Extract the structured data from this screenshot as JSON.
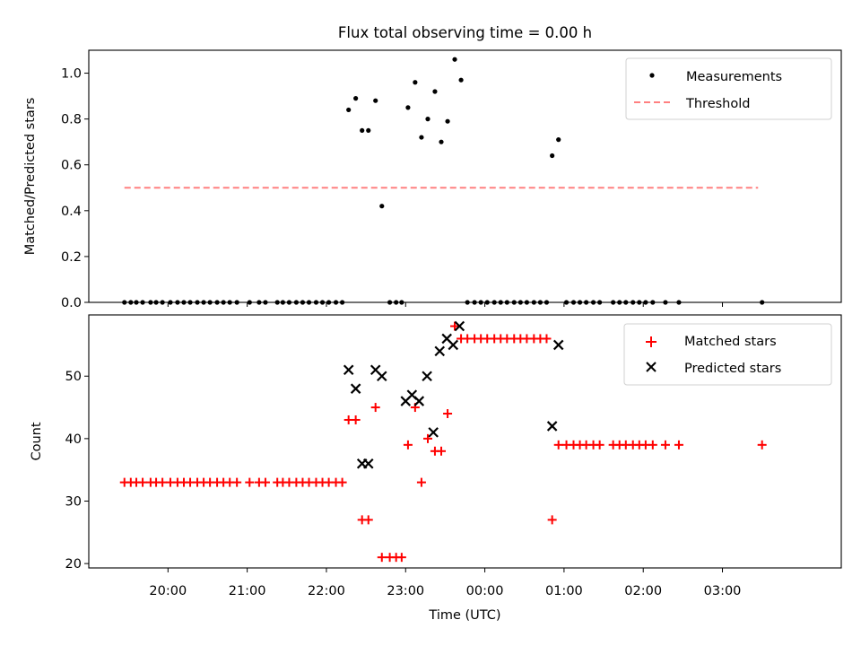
{
  "figure_title": "Flux total observing time = 0.00 h",
  "chart_data": [
    {
      "type": "scatter",
      "ylabel": "Matched/Predicted stars",
      "xlim_hours": [
        19.0,
        28.5
      ],
      "ylim": [
        0,
        1.1
      ],
      "yticks": [
        0.0,
        0.2,
        0.4,
        0.6,
        0.8,
        1.0
      ],
      "ytick_labels": [
        "0.0",
        "0.2",
        "0.4",
        "0.6",
        "0.8",
        "1.0"
      ],
      "legend": {
        "position": "upper right",
        "entries": [
          "Measurements",
          "Threshold"
        ]
      },
      "series": [
        {
          "name": "Measurements",
          "marker": "dot",
          "color": "#000000",
          "points": [
            [
              19.45,
              0
            ],
            [
              19.53,
              0
            ],
            [
              19.6,
              0
            ],
            [
              19.68,
              0
            ],
            [
              19.78,
              0
            ],
            [
              19.85,
              0
            ],
            [
              19.93,
              0
            ],
            [
              20.03,
              0
            ],
            [
              20.12,
              0
            ],
            [
              20.2,
              0
            ],
            [
              20.28,
              0
            ],
            [
              20.37,
              0
            ],
            [
              20.45,
              0
            ],
            [
              20.53,
              0
            ],
            [
              20.62,
              0
            ],
            [
              20.7,
              0
            ],
            [
              20.78,
              0
            ],
            [
              20.87,
              0
            ],
            [
              21.03,
              0
            ],
            [
              21.15,
              0
            ],
            [
              21.23,
              0
            ],
            [
              21.38,
              0
            ],
            [
              21.45,
              0
            ],
            [
              21.53,
              0
            ],
            [
              21.62,
              0
            ],
            [
              21.7,
              0
            ],
            [
              21.78,
              0
            ],
            [
              21.87,
              0
            ],
            [
              21.95,
              0
            ],
            [
              22.03,
              0
            ],
            [
              22.12,
              0
            ],
            [
              22.2,
              0
            ],
            [
              22.28,
              0.84
            ],
            [
              22.37,
              0.89
            ],
            [
              22.45,
              0.75
            ],
            [
              22.53,
              0.75
            ],
            [
              22.62,
              0.88
            ],
            [
              22.7,
              0.42
            ],
            [
              22.8,
              0
            ],
            [
              22.88,
              0
            ],
            [
              22.95,
              0
            ],
            [
              23.03,
              0.85
            ],
            [
              23.12,
              0.96
            ],
            [
              23.2,
              0.72
            ],
            [
              23.28,
              0.8
            ],
            [
              23.37,
              0.92
            ],
            [
              23.45,
              0.7
            ],
            [
              23.53,
              0.79
            ],
            [
              23.62,
              1.06
            ],
            [
              23.7,
              0.97
            ],
            [
              23.78,
              0
            ],
            [
              23.87,
              0
            ],
            [
              23.95,
              0
            ],
            [
              24.03,
              0
            ],
            [
              24.12,
              0
            ],
            [
              24.2,
              0
            ],
            [
              24.28,
              0
            ],
            [
              24.37,
              0
            ],
            [
              24.45,
              0
            ],
            [
              24.53,
              0
            ],
            [
              24.62,
              0
            ],
            [
              24.7,
              0
            ],
            [
              24.78,
              0
            ],
            [
              24.85,
              0.64
            ],
            [
              24.93,
              0.71
            ],
            [
              25.03,
              0
            ],
            [
              25.12,
              0
            ],
            [
              25.2,
              0
            ],
            [
              25.28,
              0
            ],
            [
              25.37,
              0
            ],
            [
              25.45,
              0
            ],
            [
              25.62,
              0
            ],
            [
              25.7,
              0
            ],
            [
              25.78,
              0
            ],
            [
              25.87,
              0
            ],
            [
              25.95,
              0
            ],
            [
              26.03,
              0
            ],
            [
              26.12,
              0
            ],
            [
              26.28,
              0
            ],
            [
              26.45,
              0
            ],
            [
              27.5,
              0
            ]
          ]
        },
        {
          "name": "Threshold",
          "style": "dashed",
          "color": "#ff8080",
          "points": [
            [
              19.45,
              0.5
            ],
            [
              27.45,
              0.5
            ]
          ]
        }
      ]
    },
    {
      "type": "scatter",
      "xlabel": "Time (UTC)",
      "ylabel": "Count",
      "xlim_hours": [
        19.0,
        28.5
      ],
      "ylim": [
        19.3,
        59.8
      ],
      "yticks": [
        20,
        30,
        40,
        50
      ],
      "ytick_labels": [
        "20",
        "30",
        "40",
        "50"
      ],
      "xticks_hours": [
        20,
        21,
        22,
        23,
        24,
        25,
        26,
        27
      ],
      "xtick_labels": [
        "20:00",
        "21:00",
        "22:00",
        "23:00",
        "00:00",
        "01:00",
        "02:00",
        "03:00"
      ],
      "legend": {
        "position": "upper right",
        "entries": [
          "Matched stars",
          "Predicted stars"
        ]
      },
      "series": [
        {
          "name": "Matched stars",
          "marker": "plus",
          "color": "#ff0000",
          "points": [
            [
              19.45,
              33
            ],
            [
              19.53,
              33
            ],
            [
              19.6,
              33
            ],
            [
              19.68,
              33
            ],
            [
              19.78,
              33
            ],
            [
              19.85,
              33
            ],
            [
              19.93,
              33
            ],
            [
              20.03,
              33
            ],
            [
              20.12,
              33
            ],
            [
              20.2,
              33
            ],
            [
              20.28,
              33
            ],
            [
              20.37,
              33
            ],
            [
              20.45,
              33
            ],
            [
              20.53,
              33
            ],
            [
              20.62,
              33
            ],
            [
              20.7,
              33
            ],
            [
              20.78,
              33
            ],
            [
              20.87,
              33
            ],
            [
              21.03,
              33
            ],
            [
              21.15,
              33
            ],
            [
              21.23,
              33
            ],
            [
              21.38,
              33
            ],
            [
              21.45,
              33
            ],
            [
              21.53,
              33
            ],
            [
              21.62,
              33
            ],
            [
              21.7,
              33
            ],
            [
              21.78,
              33
            ],
            [
              21.87,
              33
            ],
            [
              21.95,
              33
            ],
            [
              22.03,
              33
            ],
            [
              22.12,
              33
            ],
            [
              22.2,
              33
            ],
            [
              22.28,
              43
            ],
            [
              22.37,
              43
            ],
            [
              22.45,
              27
            ],
            [
              22.53,
              27
            ],
            [
              22.62,
              45
            ],
            [
              22.7,
              21
            ],
            [
              22.8,
              21
            ],
            [
              22.88,
              21
            ],
            [
              22.95,
              21
            ],
            [
              23.03,
              39
            ],
            [
              23.12,
              45
            ],
            [
              23.2,
              33
            ],
            [
              23.28,
              40
            ],
            [
              23.37,
              38
            ],
            [
              23.45,
              38
            ],
            [
              23.53,
              44
            ],
            [
              23.62,
              58
            ],
            [
              23.7,
              56
            ],
            [
              23.78,
              56
            ],
            [
              23.87,
              56
            ],
            [
              23.95,
              56
            ],
            [
              24.03,
              56
            ],
            [
              24.12,
              56
            ],
            [
              24.2,
              56
            ],
            [
              24.28,
              56
            ],
            [
              24.37,
              56
            ],
            [
              24.45,
              56
            ],
            [
              24.53,
              56
            ],
            [
              24.62,
              56
            ],
            [
              24.7,
              56
            ],
            [
              24.78,
              56
            ],
            [
              24.85,
              27
            ],
            [
              24.93,
              39
            ],
            [
              25.03,
              39
            ],
            [
              25.12,
              39
            ],
            [
              25.2,
              39
            ],
            [
              25.28,
              39
            ],
            [
              25.37,
              39
            ],
            [
              25.45,
              39
            ],
            [
              25.62,
              39
            ],
            [
              25.7,
              39
            ],
            [
              25.78,
              39
            ],
            [
              25.87,
              39
            ],
            [
              25.95,
              39
            ],
            [
              26.03,
              39
            ],
            [
              26.12,
              39
            ],
            [
              26.28,
              39
            ],
            [
              26.45,
              39
            ],
            [
              27.5,
              39
            ]
          ]
        },
        {
          "name": "Predicted stars",
          "marker": "x",
          "color": "#000000",
          "points": [
            [
              22.28,
              51
            ],
            [
              22.37,
              48
            ],
            [
              22.45,
              36
            ],
            [
              22.53,
              36
            ],
            [
              22.62,
              51
            ],
            [
              22.7,
              50
            ],
            [
              23.0,
              46
            ],
            [
              23.08,
              47
            ],
            [
              23.17,
              46
            ],
            [
              23.27,
              50
            ],
            [
              23.35,
              41
            ],
            [
              23.43,
              54
            ],
            [
              23.52,
              56
            ],
            [
              23.6,
              55
            ],
            [
              23.68,
              58
            ],
            [
              24.85,
              42
            ],
            [
              24.93,
              55
            ]
          ]
        }
      ]
    }
  ]
}
